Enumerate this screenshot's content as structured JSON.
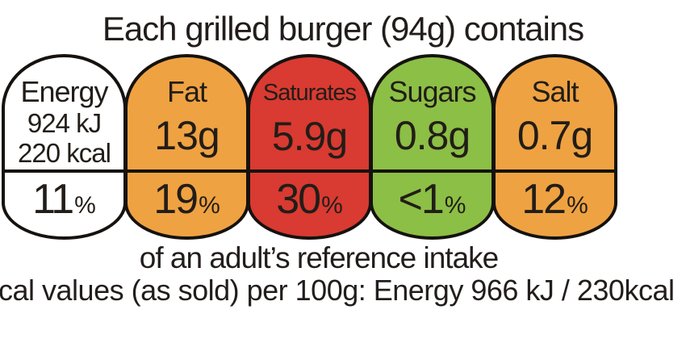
{
  "title": {
    "text": "Each grilled burger (94g) contains"
  },
  "colors": {
    "energy_bg": "#FFFFFF",
    "fat_bg": "#EFA242",
    "saturates_bg": "#D93A31",
    "sugars_bg": "#8CBF45",
    "salt_bg": "#EFA242",
    "outline": "#15120F",
    "text": "#221D18"
  },
  "panels": [
    {
      "id": "energy",
      "label": "Energy",
      "value_lines": [
        "924 kJ",
        "220 kcal"
      ],
      "percent_value": "11",
      "percent_unit": "%",
      "bg": "#FFFFFF"
    },
    {
      "id": "fat",
      "label": "Fat",
      "value": "13g",
      "percent_value": "19",
      "percent_unit": "%",
      "bg": "#EFA242"
    },
    {
      "id": "saturates",
      "label": "Saturates",
      "value": "5.9g",
      "percent_value": "30",
      "percent_unit": "%",
      "bg": "#D93A31"
    },
    {
      "id": "sugars",
      "label": "Sugars",
      "value": "0.8g",
      "percent_value": "<1",
      "percent_unit": "%",
      "bg": "#8CBF45"
    },
    {
      "id": "salt",
      "label": "Salt",
      "value": "0.7g",
      "percent_value": "12",
      "percent_unit": "%",
      "bg": "#EFA242"
    }
  ],
  "footer": {
    "reference_intake": "of an adult’s reference intake",
    "per_100g_partial": "cal values (as sold) per 100g: Energy 966 kJ / 230kcal"
  }
}
